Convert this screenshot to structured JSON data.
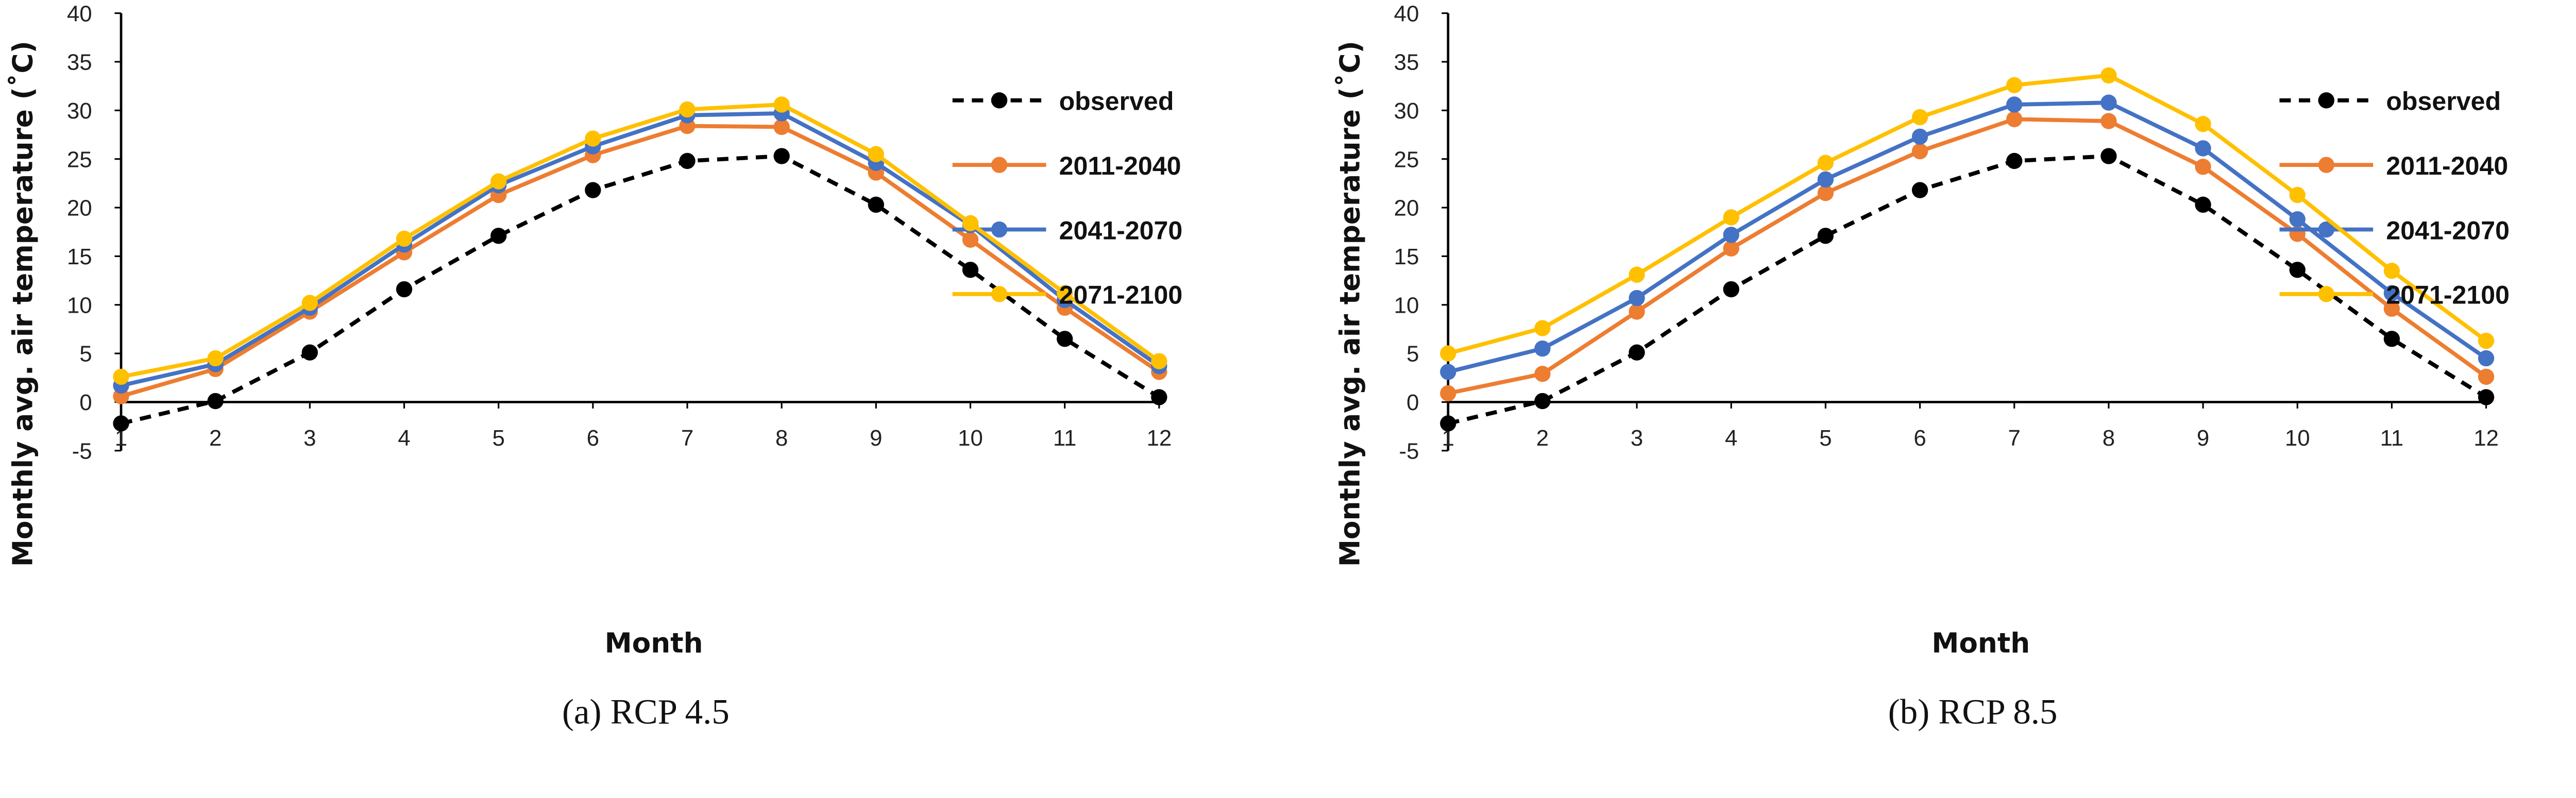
{
  "colors": {
    "observed": "#000000",
    "2011-2040": "#ED7D31",
    "2041-2070": "#4472C4",
    "2071-2100": "#FFC000"
  },
  "chart_data": [
    {
      "type": "line",
      "caption": "(a)  RCP  4.5",
      "xlabel": "Month",
      "ylabel": "Monthly avg. air temperature (˚C)",
      "x": [
        1,
        2,
        3,
        4,
        5,
        6,
        7,
        8,
        9,
        10,
        11,
        12
      ],
      "ylim": [
        -5,
        40
      ],
      "yticks": [
        -5,
        0,
        5,
        10,
        15,
        20,
        25,
        30,
        35,
        40
      ],
      "grid": false,
      "legend": "right",
      "series": [
        {
          "name": "observed",
          "style": "dashed",
          "values": [
            -2.2,
            0.1,
            5.1,
            11.6,
            17.1,
            21.8,
            24.8,
            25.3,
            20.3,
            13.6,
            6.5,
            0.5
          ]
        },
        {
          "name": "2011-2040",
          "style": "solid",
          "values": [
            0.6,
            3.4,
            9.3,
            15.4,
            21.3,
            25.4,
            28.4,
            28.3,
            23.6,
            16.7,
            9.7,
            3.1
          ]
        },
        {
          "name": "2041-2070",
          "style": "solid",
          "values": [
            1.7,
            3.9,
            9.7,
            16.2,
            22.3,
            26.3,
            29.5,
            29.7,
            24.6,
            18.2,
            10.5,
            3.7
          ]
        },
        {
          "name": "2071-2100",
          "style": "solid",
          "values": [
            2.6,
            4.5,
            10.2,
            16.8,
            22.7,
            27.1,
            30.1,
            30.6,
            25.5,
            18.4,
            11.2,
            4.2
          ]
        }
      ]
    },
    {
      "type": "line",
      "caption": "(b)  RCP  8.5",
      "xlabel": "Month",
      "ylabel": "Monthly avg. air temperature (˚C)",
      "x": [
        1,
        2,
        3,
        4,
        5,
        6,
        7,
        8,
        9,
        10,
        11,
        12
      ],
      "ylim": [
        -5,
        40
      ],
      "yticks": [
        -5,
        0,
        5,
        10,
        15,
        20,
        25,
        30,
        35,
        40
      ],
      "grid": false,
      "legend": "right",
      "series": [
        {
          "name": "observed",
          "style": "dashed",
          "values": [
            -2.2,
            0.1,
            5.1,
            11.6,
            17.1,
            21.8,
            24.8,
            25.3,
            20.3,
            13.6,
            6.5,
            0.5
          ]
        },
        {
          "name": "2011-2040",
          "style": "solid",
          "values": [
            0.9,
            2.9,
            9.3,
            15.8,
            21.5,
            25.8,
            29.1,
            28.9,
            24.2,
            17.3,
            9.6,
            2.6
          ]
        },
        {
          "name": "2041-2070",
          "style": "solid",
          "values": [
            3.1,
            5.5,
            10.7,
            17.2,
            22.9,
            27.3,
            30.6,
            30.8,
            26.1,
            18.8,
            11.2,
            4.5
          ]
        },
        {
          "name": "2071-2100",
          "style": "solid",
          "values": [
            5.0,
            7.6,
            13.1,
            19.0,
            24.6,
            29.3,
            32.6,
            33.6,
            28.6,
            21.3,
            13.5,
            6.3
          ]
        }
      ]
    }
  ]
}
